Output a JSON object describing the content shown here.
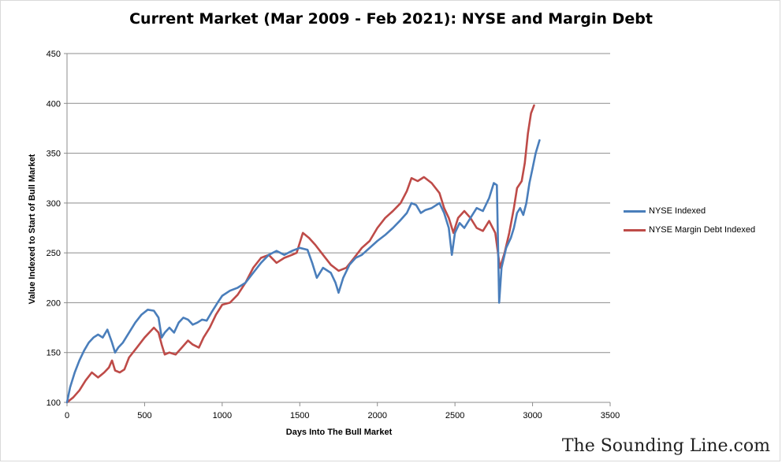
{
  "watermark": "The Sounding Line.com",
  "chart_data": {
    "type": "line",
    "title": "Current Market (Mar 2009 - Feb 2021): NYSE and Margin Debt",
    "xlabel": "Days Into The Bull Market",
    "ylabel": "Value Indexed to Start of Bull Market",
    "xlim": [
      0,
      3500
    ],
    "ylim": [
      100,
      450
    ],
    "xticks": [
      0,
      500,
      1000,
      1500,
      2000,
      2500,
      3000,
      3500
    ],
    "yticks": [
      100,
      150,
      200,
      250,
      300,
      350,
      400,
      450
    ],
    "grid": "horizontal",
    "legend_position": "right",
    "series": [
      {
        "name": "NYSE Indexed",
        "color": "#4a7ebb",
        "points": [
          [
            0,
            100
          ],
          [
            20,
            115
          ],
          [
            50,
            130
          ],
          [
            80,
            142
          ],
          [
            110,
            152
          ],
          [
            140,
            160
          ],
          [
            170,
            165
          ],
          [
            200,
            168
          ],
          [
            230,
            165
          ],
          [
            260,
            173
          ],
          [
            290,
            160
          ],
          [
            310,
            150
          ],
          [
            330,
            155
          ],
          [
            360,
            160
          ],
          [
            400,
            170
          ],
          [
            440,
            180
          ],
          [
            480,
            188
          ],
          [
            520,
            193
          ],
          [
            560,
            192
          ],
          [
            590,
            185
          ],
          [
            610,
            165
          ],
          [
            630,
            170
          ],
          [
            660,
            175
          ],
          [
            690,
            170
          ],
          [
            720,
            180
          ],
          [
            750,
            185
          ],
          [
            780,
            183
          ],
          [
            810,
            178
          ],
          [
            840,
            180
          ],
          [
            870,
            183
          ],
          [
            900,
            182
          ],
          [
            930,
            190
          ],
          [
            970,
            200
          ],
          [
            1000,
            207
          ],
          [
            1050,
            212
          ],
          [
            1100,
            215
          ],
          [
            1150,
            220
          ],
          [
            1200,
            230
          ],
          [
            1250,
            240
          ],
          [
            1300,
            248
          ],
          [
            1350,
            252
          ],
          [
            1400,
            248
          ],
          [
            1450,
            252
          ],
          [
            1500,
            255
          ],
          [
            1550,
            253
          ],
          [
            1580,
            240
          ],
          [
            1610,
            225
          ],
          [
            1650,
            235
          ],
          [
            1700,
            230
          ],
          [
            1730,
            220
          ],
          [
            1750,
            210
          ],
          [
            1780,
            225
          ],
          [
            1820,
            238
          ],
          [
            1860,
            245
          ],
          [
            1900,
            248
          ],
          [
            1950,
            255
          ],
          [
            2000,
            262
          ],
          [
            2050,
            268
          ],
          [
            2100,
            275
          ],
          [
            2150,
            283
          ],
          [
            2190,
            290
          ],
          [
            2220,
            300
          ],
          [
            2250,
            298
          ],
          [
            2280,
            290
          ],
          [
            2310,
            293
          ],
          [
            2350,
            295
          ],
          [
            2400,
            300
          ],
          [
            2430,
            290
          ],
          [
            2460,
            275
          ],
          [
            2480,
            248
          ],
          [
            2500,
            270
          ],
          [
            2530,
            280
          ],
          [
            2560,
            275
          ],
          [
            2600,
            285
          ],
          [
            2640,
            295
          ],
          [
            2680,
            292
          ],
          [
            2720,
            305
          ],
          [
            2750,
            320
          ],
          [
            2770,
            318
          ],
          [
            2785,
            200
          ],
          [
            2800,
            235
          ],
          [
            2830,
            255
          ],
          [
            2860,
            265
          ],
          [
            2880,
            275
          ],
          [
            2900,
            290
          ],
          [
            2920,
            295
          ],
          [
            2940,
            288
          ],
          [
            2960,
            300
          ],
          [
            2980,
            320
          ],
          [
            3000,
            335
          ],
          [
            3020,
            350
          ],
          [
            3045,
            363
          ]
        ]
      },
      {
        "name": "NYSE Margin Debt Indexed",
        "color": "#be4b48",
        "points": [
          [
            0,
            100
          ],
          [
            40,
            105
          ],
          [
            80,
            112
          ],
          [
            120,
            122
          ],
          [
            160,
            130
          ],
          [
            200,
            125
          ],
          [
            240,
            130
          ],
          [
            270,
            135
          ],
          [
            290,
            142
          ],
          [
            310,
            132
          ],
          [
            340,
            130
          ],
          [
            370,
            133
          ],
          [
            400,
            145
          ],
          [
            450,
            155
          ],
          [
            500,
            165
          ],
          [
            560,
            175
          ],
          [
            590,
            170
          ],
          [
            610,
            158
          ],
          [
            630,
            148
          ],
          [
            660,
            150
          ],
          [
            700,
            148
          ],
          [
            740,
            155
          ],
          [
            780,
            162
          ],
          [
            810,
            158
          ],
          [
            850,
            155
          ],
          [
            880,
            165
          ],
          [
            920,
            175
          ],
          [
            960,
            188
          ],
          [
            1000,
            198
          ],
          [
            1050,
            200
          ],
          [
            1100,
            208
          ],
          [
            1150,
            220
          ],
          [
            1200,
            235
          ],
          [
            1250,
            245
          ],
          [
            1300,
            248
          ],
          [
            1350,
            240
          ],
          [
            1400,
            245
          ],
          [
            1450,
            248
          ],
          [
            1480,
            250
          ],
          [
            1520,
            270
          ],
          [
            1560,
            265
          ],
          [
            1600,
            258
          ],
          [
            1650,
            248
          ],
          [
            1700,
            238
          ],
          [
            1750,
            232
          ],
          [
            1800,
            235
          ],
          [
            1850,
            245
          ],
          [
            1900,
            255
          ],
          [
            1950,
            262
          ],
          [
            2000,
            275
          ],
          [
            2050,
            285
          ],
          [
            2100,
            292
          ],
          [
            2150,
            300
          ],
          [
            2190,
            312
          ],
          [
            2220,
            325
          ],
          [
            2260,
            322
          ],
          [
            2300,
            326
          ],
          [
            2350,
            320
          ],
          [
            2400,
            310
          ],
          [
            2430,
            295
          ],
          [
            2460,
            285
          ],
          [
            2490,
            270
          ],
          [
            2520,
            285
          ],
          [
            2560,
            292
          ],
          [
            2600,
            285
          ],
          [
            2640,
            275
          ],
          [
            2680,
            272
          ],
          [
            2720,
            282
          ],
          [
            2760,
            270
          ],
          [
            2790,
            235
          ],
          [
            2820,
            250
          ],
          [
            2850,
            270
          ],
          [
            2880,
            295
          ],
          [
            2900,
            315
          ],
          [
            2930,
            322
          ],
          [
            2950,
            340
          ],
          [
            2970,
            370
          ],
          [
            2990,
            390
          ],
          [
            3010,
            398
          ]
        ]
      }
    ]
  }
}
